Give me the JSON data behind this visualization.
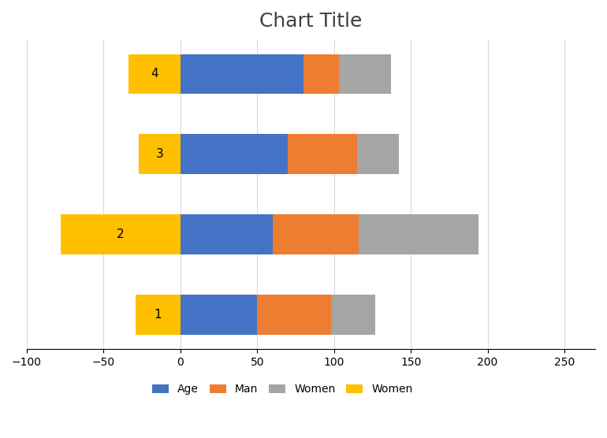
{
  "title": "Chart Title",
  "categories": [
    "1",
    "2",
    "3",
    "4"
  ],
  "age_values": [
    50,
    60,
    70,
    80
  ],
  "man_values": [
    48,
    56,
    45,
    23
  ],
  "women_positive": [
    29,
    78,
    27,
    34
  ],
  "women_negative": [
    -29,
    -78,
    -27,
    -34
  ],
  "colors": {
    "age": "#4472C4",
    "man": "#ED7D31",
    "women_gray": "#A5A5A5",
    "women_yellow": "#FFC000"
  },
  "legend_labels": [
    "Age",
    "Man",
    "Women",
    "Women"
  ],
  "xlim": [
    -100,
    270
  ],
  "xticks": [
    -100,
    -50,
    0,
    50,
    100,
    150,
    200,
    250
  ],
  "background_color": "#ffffff",
  "title_fontsize": 18
}
